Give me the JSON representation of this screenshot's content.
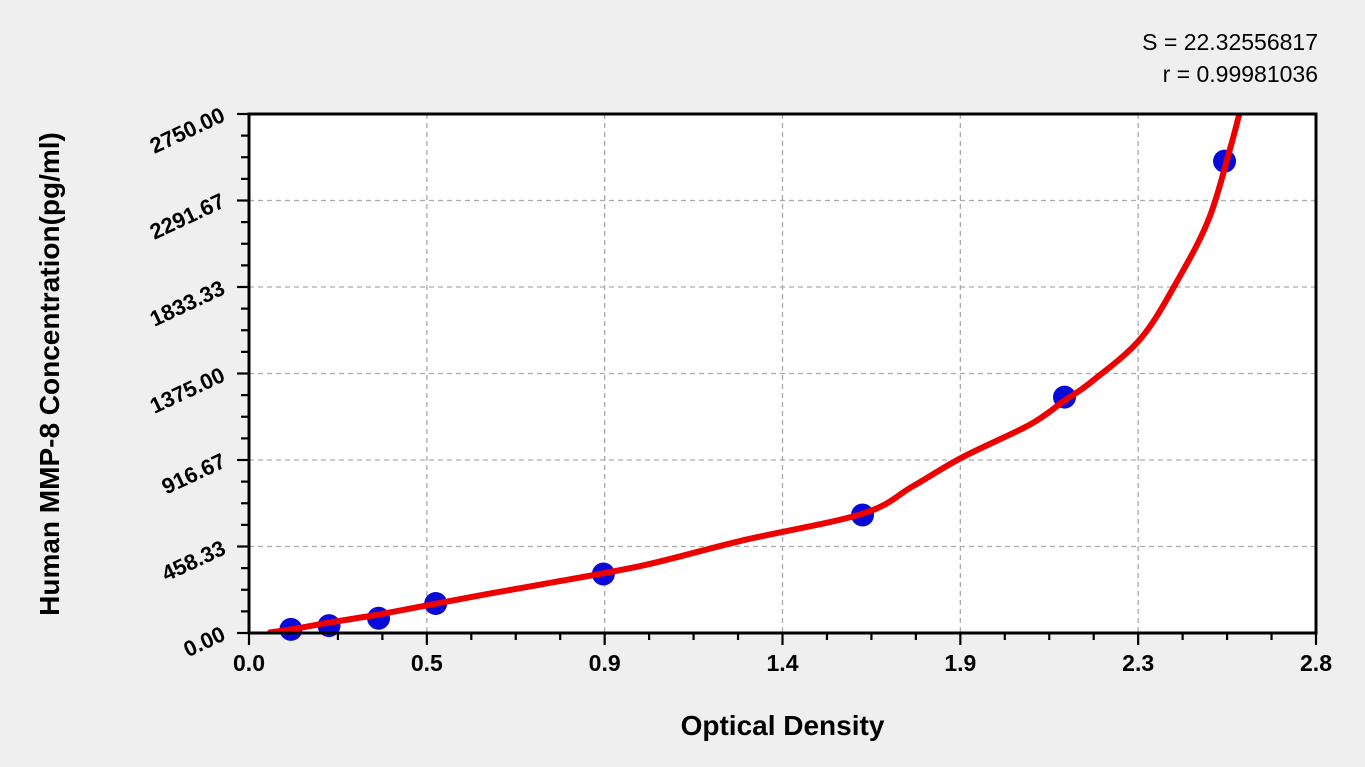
{
  "annotation": {
    "s_line": "S = 22.32556817",
    "r_line": "r = 0.99981036"
  },
  "chart_data": {
    "type": "scatter",
    "title": "",
    "xlabel": "Optical Density",
    "ylabel": "Human MMP-8 Concentration(pg/ml)",
    "xlim": [
      0,
      2.8
    ],
    "ylim": [
      0,
      2750
    ],
    "x_ticks": [
      {
        "value": 0,
        "label": "0.0"
      },
      {
        "value": 0.4667,
        "label": "0.5"
      },
      {
        "value": 0.9333,
        "label": "0.9"
      },
      {
        "value": 1.4,
        "label": "1.4"
      },
      {
        "value": 1.8667,
        "label": "1.9"
      },
      {
        "value": 2.3333,
        "label": "2.3"
      },
      {
        "value": 2.8,
        "label": "2.8"
      }
    ],
    "y_ticks": [
      {
        "value": 0,
        "label": "0.00"
      },
      {
        "value": 458.33,
        "label": "458.33"
      },
      {
        "value": 916.67,
        "label": "916.67"
      },
      {
        "value": 1375,
        "label": "1375.00"
      },
      {
        "value": 1833.33,
        "label": "1833.33"
      },
      {
        "value": 2291.67,
        "label": "2291.67"
      },
      {
        "value": 2750,
        "label": "2750.00"
      }
    ],
    "minor_ticks_per_interval": 3,
    "grid": {
      "style": "dashed",
      "on_major_ticks": true,
      "legend": "none"
    },
    "series": [
      {
        "name": "standard-points",
        "marker": "circle",
        "points": [
          {
            "od": 0.11,
            "conc": 19.5
          },
          {
            "od": 0.21,
            "conc": 39.1
          },
          {
            "od": 0.34,
            "conc": 78.1
          },
          {
            "od": 0.49,
            "conc": 156.3
          },
          {
            "od": 0.93,
            "conc": 312.5
          },
          {
            "od": 1.61,
            "conc": 625
          },
          {
            "od": 2.14,
            "conc": 1250
          },
          {
            "od": 2.56,
            "conc": 2500
          }
        ]
      }
    ],
    "fit_curve": {
      "name": "fitted-standard-curve",
      "samples": [
        [
          0.055,
          3
        ],
        [
          0.113,
          20
        ],
        [
          0.21,
          55
        ],
        [
          0.34,
          98
        ],
        [
          0.49,
          155
        ],
        [
          0.63,
          208
        ],
        [
          0.76,
          255
        ],
        [
          1.03,
          356
        ],
        [
          1.29,
          488
        ],
        [
          1.61,
          632
        ],
        [
          1.74,
          775
        ],
        [
          1.87,
          929
        ],
        [
          2.05,
          1105
        ],
        [
          2.139,
          1230
        ],
        [
          2.21,
          1330
        ],
        [
          2.34,
          1560
        ],
        [
          2.44,
          1880
        ],
        [
          2.52,
          2200
        ],
        [
          2.575,
          2570
        ],
        [
          2.605,
          2800
        ]
      ]
    },
    "stats": {
      "S": "22.32556817",
      "r": "0.99981036"
    },
    "colors": {
      "background": "#efefef",
      "plot_background": "#ffffff",
      "frame": "#000000",
      "grid": "#aaaaaa",
      "curve": "#ee0000",
      "marker": "#0a0ad8",
      "text": "#000000"
    }
  }
}
